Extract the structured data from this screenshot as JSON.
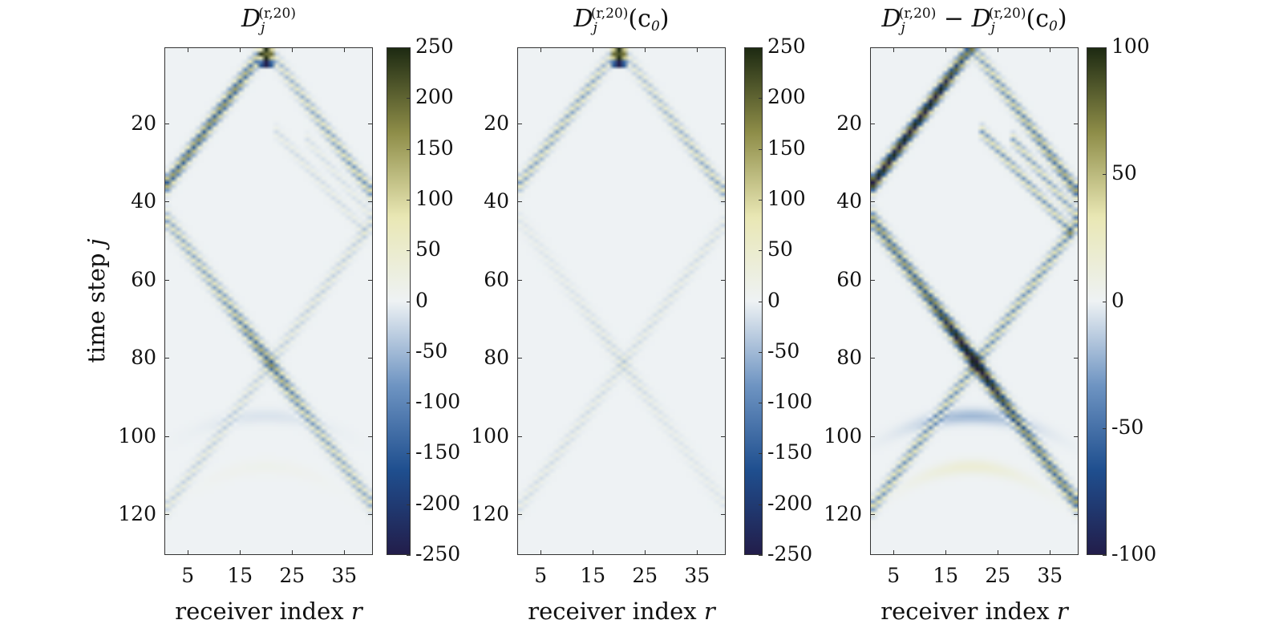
{
  "chart_data": [
    {
      "type": "heatmap",
      "title": {
        "main": "D",
        "sub": "j",
        "sup": "(r,20)",
        "suffix": ""
      },
      "xlabel": "receiver index",
      "xlabel_var": "r",
      "ylabel": "time step",
      "ylabel_var": "j",
      "xlim": [
        0.5,
        40.5
      ],
      "ylim": [
        0.5,
        130.5
      ],
      "xticks": [
        5,
        15,
        25,
        35
      ],
      "yticks": [
        20,
        40,
        60,
        80,
        100,
        120
      ],
      "clim": [
        -250,
        250
      ],
      "cticks": [
        250,
        200,
        150,
        100,
        50,
        0,
        -50,
        -100,
        -150,
        -200,
        -250
      ],
      "source": {
        "r": 20,
        "j": 1,
        "amplitude": 250
      },
      "wavefronts": [
        {
          "name": "direct-left",
          "amp": 150
        },
        {
          "name": "direct-right",
          "amp": 90
        },
        {
          "name": "reflect-left",
          "amp": 110
        },
        {
          "name": "reflect-right",
          "amp": 30
        },
        {
          "name": "inner-arcs",
          "amp": 25
        }
      ]
    },
    {
      "type": "heatmap",
      "title": {
        "main": "D",
        "sub": "j",
        "sup": "(r,20)",
        "suffix": "(c",
        "suffix_sub": "0",
        "suffix_end": ")"
      },
      "xlabel": "receiver index",
      "xlabel_var": "r",
      "xlim": [
        0.5,
        40.5
      ],
      "ylim": [
        0.5,
        130.5
      ],
      "xticks": [
        5,
        15,
        25,
        35
      ],
      "yticks": [
        20,
        40,
        60,
        80,
        100,
        120
      ],
      "clim": [
        -250,
        250
      ],
      "cticks": [
        250,
        200,
        150,
        100,
        50,
        0,
        -50,
        -100,
        -150,
        -200,
        -250
      ],
      "source": {
        "r": 20,
        "j": 1,
        "amplitude": 250
      },
      "wavefronts": [
        {
          "name": "direct-left",
          "amp": 70
        },
        {
          "name": "direct-right",
          "amp": 70
        },
        {
          "name": "reflect-left",
          "amp": 20
        },
        {
          "name": "reflect-right",
          "amp": 20
        },
        {
          "name": "inner-arcs",
          "amp": 0
        }
      ]
    },
    {
      "type": "heatmap",
      "title": {
        "main": "D",
        "sub": "j",
        "sup": "(r,20)",
        "minus": "−",
        "main2": "D",
        "sub2": "j",
        "sup2": "(r,20)",
        "suffix": "(c",
        "suffix_sub": "0",
        "suffix_end": ")"
      },
      "xlabel": "receiver index",
      "xlabel_var": "r",
      "xlim": [
        0.5,
        40.5
      ],
      "ylim": [
        0.5,
        130.5
      ],
      "xticks": [
        5,
        15,
        25,
        35
      ],
      "yticks": [
        20,
        40,
        60,
        80,
        100,
        120
      ],
      "clim": [
        -100,
        100
      ],
      "cticks": [
        100,
        50,
        0,
        -50,
        -100
      ],
      "source": {
        "r": 20,
        "j": 1,
        "amplitude": 0
      },
      "wavefronts": [
        {
          "name": "direct-left",
          "amp": 100
        },
        {
          "name": "direct-right",
          "amp": 55
        },
        {
          "name": "reflect-left",
          "amp": 90
        },
        {
          "name": "reflect-right",
          "amp": 35
        },
        {
          "name": "inner-arcs",
          "amp": 40
        }
      ]
    }
  ],
  "colormap": [
    "#221d4a",
    "#1f4f8f",
    "#6e94c2",
    "#eef2f4",
    "#e9e7b4",
    "#8e8d48",
    "#1d2a12"
  ]
}
